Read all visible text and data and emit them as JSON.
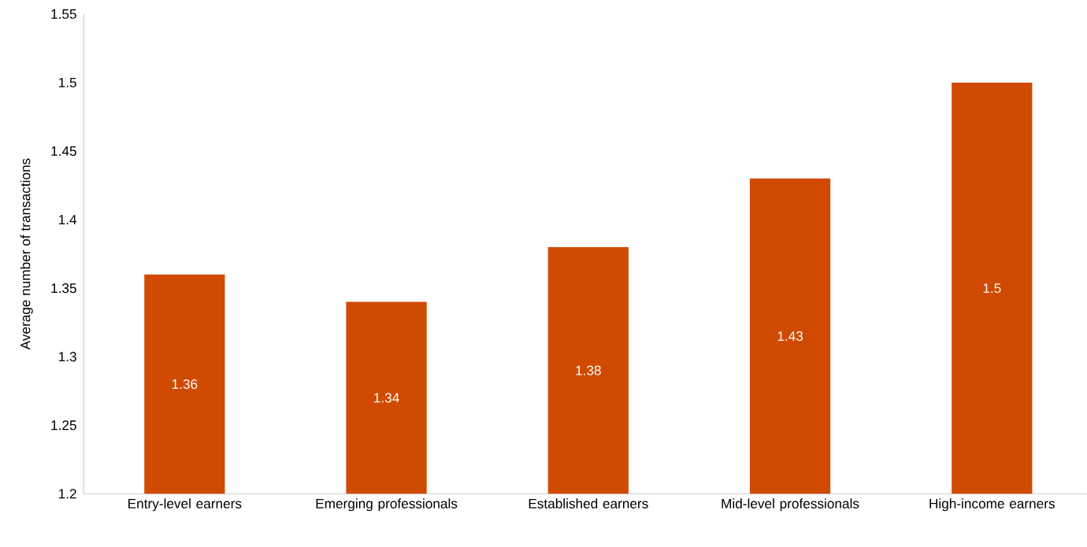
{
  "chart_data": {
    "type": "bar",
    "ylabel": "Average number of transactions",
    "categories": [
      "Entry-level earners",
      "Emerging professionals",
      "Established earners",
      "Mid-level professionals",
      "High-income earners"
    ],
    "values": [
      1.36,
      1.34,
      1.38,
      1.43,
      1.5
    ],
    "value_labels": [
      "1.36",
      "1.34",
      "1.38",
      "1.43",
      "1.5"
    ],
    "color": "#d04a02",
    "ylim": [
      1.2,
      1.55
    ],
    "yticks": [
      1.2,
      1.25,
      1.3,
      1.35,
      1.4,
      1.45,
      1.5,
      1.55
    ]
  }
}
